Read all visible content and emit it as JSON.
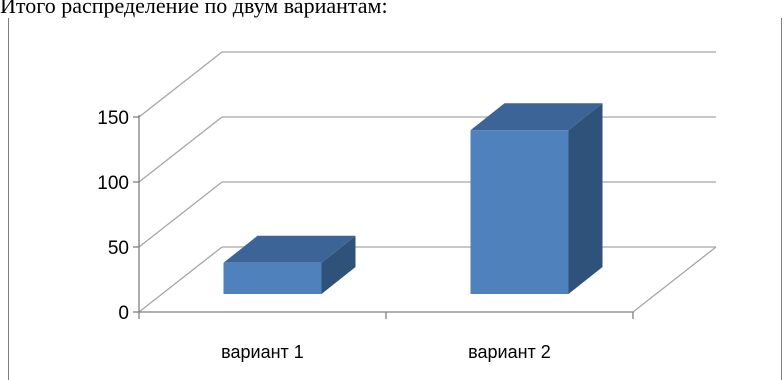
{
  "heading": "Итого распределение по двум вариантам:",
  "chart_data": {
    "type": "bar",
    "style": "3d-column",
    "categories": [
      "вариант 1",
      "вариант 2"
    ],
    "values": [
      24,
      126
    ],
    "ylim": [
      0,
      150
    ],
    "yticks": [
      0,
      50,
      100,
      150
    ],
    "grid": true,
    "legend": "none",
    "colors": {
      "front": "#4f81bd",
      "side": "#2f527a",
      "top": "#3c6496",
      "grid": "#a6a6a6",
      "axis": "#7f7f7f"
    }
  }
}
